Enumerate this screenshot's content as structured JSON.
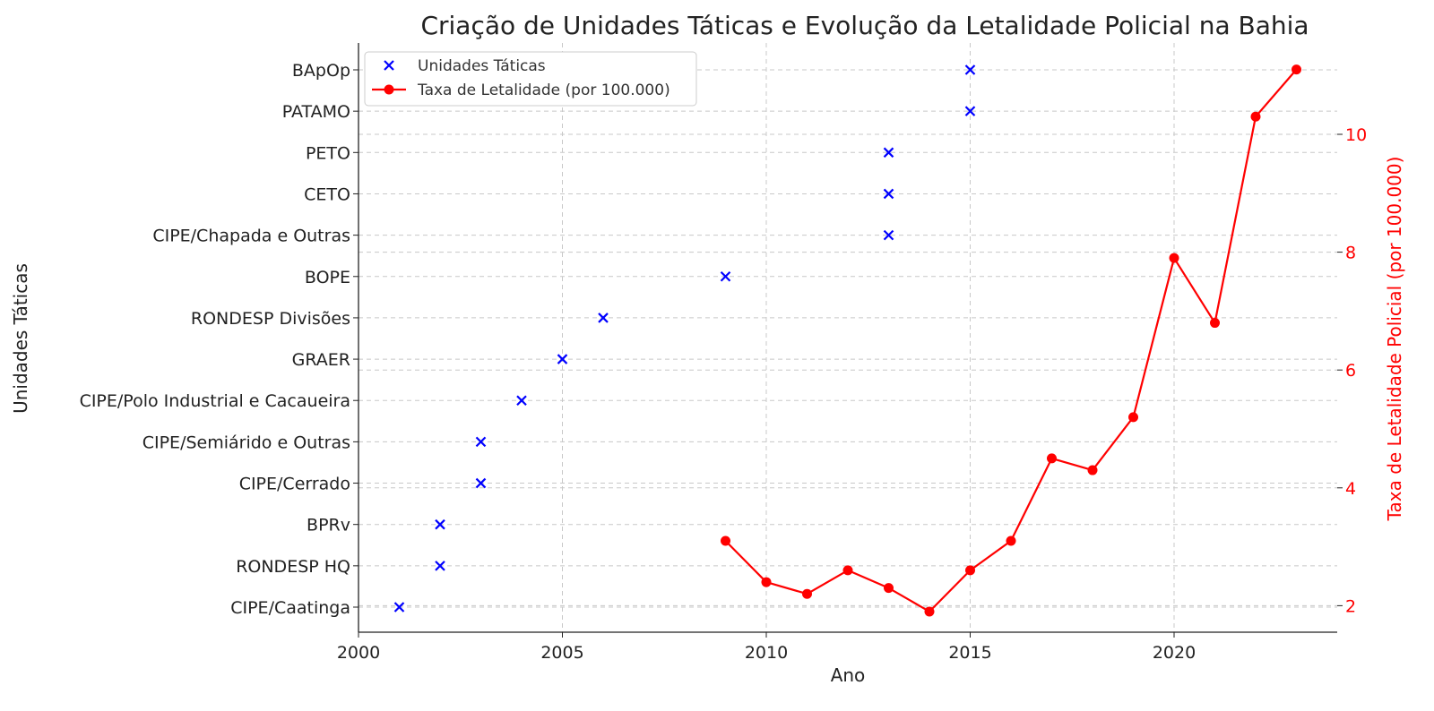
{
  "chart_data": {
    "type": "scatter+line",
    "title": "Criação de Unidades Táticas e Evolução da Letalidade Policial na Bahia",
    "xlabel": "Ano",
    "ylabel_left": "Unidades Táticas",
    "ylabel_right": "Taxa de Letalidade Policial (por 100.000)",
    "xlim": [
      2000,
      2024
    ],
    "x_ticks": [
      2000,
      2005,
      2010,
      2015,
      2020
    ],
    "y_right_lim": [
      1.55,
      11.55
    ],
    "y_right_ticks": [
      2,
      4,
      6,
      8,
      10
    ],
    "grid": true,
    "legend_position": "top-left",
    "categories": [
      "CIPE/Caatinga",
      "RONDESP HQ",
      "BPRv",
      "CIPE/Cerrado",
      "CIPE/Semiárido e Outras",
      "CIPE/Polo Industrial e Cacaueira",
      "GRAER",
      "RONDESP Divisões",
      "BOPE",
      "CIPE/Chapada e Outras",
      "CETO",
      "PETO",
      "PATAMO",
      "BApOp"
    ],
    "series": [
      {
        "name": "Unidades Táticas",
        "kind": "scatter",
        "marker": "x",
        "color": "#0000ff",
        "axis": "left",
        "points": [
          {
            "x": 2001,
            "unit": "CIPE/Caatinga"
          },
          {
            "x": 2002,
            "unit": "RONDESP HQ"
          },
          {
            "x": 2002,
            "unit": "BPRv"
          },
          {
            "x": 2003,
            "unit": "CIPE/Cerrado"
          },
          {
            "x": 2003,
            "unit": "CIPE/Semiárido e Outras"
          },
          {
            "x": 2004,
            "unit": "CIPE/Polo Industrial e Cacaueira"
          },
          {
            "x": 2005,
            "unit": "GRAER"
          },
          {
            "x": 2006,
            "unit": "RONDESP Divisões"
          },
          {
            "x": 2009,
            "unit": "BOPE"
          },
          {
            "x": 2013,
            "unit": "CIPE/Chapada e Outras"
          },
          {
            "x": 2013,
            "unit": "CETO"
          },
          {
            "x": 2013,
            "unit": "PETO"
          },
          {
            "x": 2015,
            "unit": "PATAMO"
          },
          {
            "x": 2015,
            "unit": "BApOp"
          }
        ]
      },
      {
        "name": "Taxa de Letalidade (por 100.000)",
        "kind": "line",
        "marker": "o",
        "color": "#ff0000",
        "axis": "right",
        "x": [
          2009,
          2010,
          2011,
          2012,
          2013,
          2014,
          2015,
          2016,
          2017,
          2018,
          2019,
          2020,
          2021,
          2022,
          2023
        ],
        "y": [
          3.1,
          2.4,
          2.2,
          2.6,
          2.3,
          1.9,
          2.6,
          3.1,
          4.5,
          4.3,
          5.2,
          7.9,
          6.8,
          10.3,
          11.1
        ]
      }
    ]
  }
}
